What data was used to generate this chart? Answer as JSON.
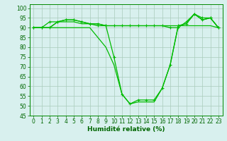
{
  "lines": [
    {
      "x": [
        0,
        1,
        2,
        3,
        4,
        5,
        6,
        7,
        8,
        9,
        10,
        11,
        12,
        13,
        14,
        15,
        16,
        17,
        18,
        19,
        20,
        21,
        22,
        23
      ],
      "y": [
        90,
        90,
        90,
        93,
        94,
        94,
        93,
        92,
        91,
        91,
        75,
        56,
        51,
        53,
        53,
        53,
        59,
        71,
        91,
        92,
        97,
        95,
        95,
        90
      ],
      "marker": "+"
    },
    {
      "x": [
        0,
        1,
        2,
        3,
        4,
        5,
        6,
        7,
        8,
        9,
        10,
        11,
        12,
        13,
        14,
        15,
        16,
        17,
        18,
        19,
        20,
        21,
        22,
        23
      ],
      "y": [
        90,
        90,
        90,
        93,
        93,
        93,
        92,
        92,
        92,
        91,
        91,
        91,
        91,
        91,
        91,
        91,
        91,
        91,
        91,
        91,
        91,
        91,
        91,
        90
      ],
      "marker": null
    },
    {
      "x": [
        0,
        1,
        2,
        3,
        4,
        5,
        6,
        7,
        8,
        9,
        10,
        11,
        12,
        13,
        14,
        15,
        16,
        17,
        18,
        19,
        20,
        21,
        22,
        23
      ],
      "y": [
        90,
        90,
        93,
        93,
        94,
        94,
        93,
        92,
        92,
        91,
        91,
        91,
        91,
        91,
        91,
        91,
        91,
        90,
        90,
        93,
        97,
        94,
        95,
        90
      ],
      "marker": "+"
    },
    {
      "x": [
        0,
        1,
        2,
        3,
        4,
        5,
        6,
        7,
        8,
        9,
        10,
        11,
        12,
        13,
        14,
        15,
        16,
        17,
        18,
        19,
        20,
        21,
        22,
        23
      ],
      "y": [
        90,
        90,
        90,
        90,
        90,
        90,
        90,
        90,
        85,
        80,
        71,
        56,
        51,
        52,
        52,
        52,
        59,
        71,
        91,
        92,
        97,
        94,
        95,
        90
      ],
      "marker": null
    }
  ],
  "line_color": "#00bb00",
  "marker_color": "#00bb00",
  "linewidth": 0.9,
  "markersize": 3,
  "background_color": "#d8f0ee",
  "grid_color": "#aaccbb",
  "axis_color": "#008800",
  "xlabel": "Humidité relative (%)",
  "xlabel_color": "#006600",
  "xlabel_fontsize": 6.5,
  "tick_color": "#006600",
  "tick_fontsize": 5.5,
  "xlim": [
    -0.5,
    23.5
  ],
  "ylim": [
    45,
    102
  ],
  "yticks": [
    45,
    50,
    55,
    60,
    65,
    70,
    75,
    80,
    85,
    90,
    95,
    100
  ],
  "xticks": [
    0,
    1,
    2,
    3,
    4,
    5,
    6,
    7,
    8,
    9,
    10,
    11,
    12,
    13,
    14,
    15,
    16,
    17,
    18,
    19,
    20,
    21,
    22,
    23
  ]
}
